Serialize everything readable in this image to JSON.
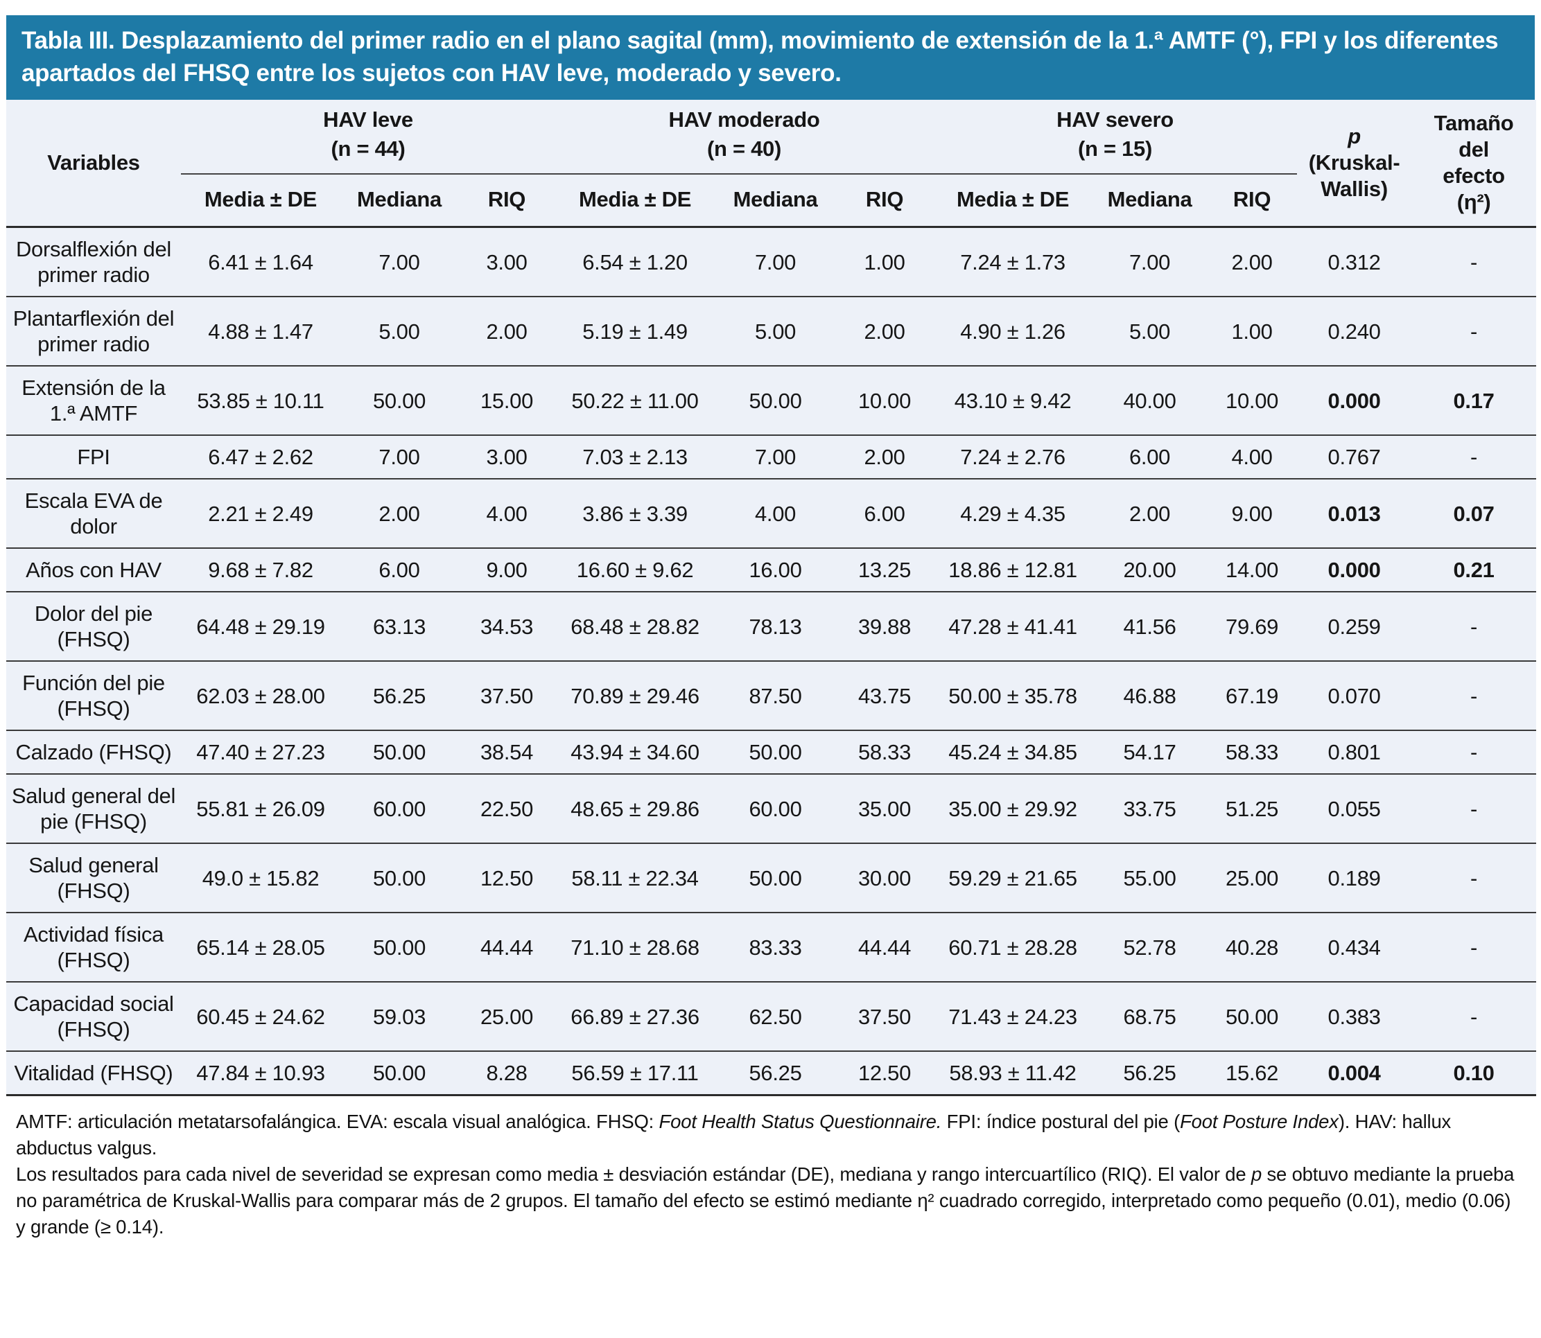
{
  "title": "Tabla III. Desplazamiento del primer radio en el plano sagital (mm), movimiento de extensión de la 1.ª AMTF (°), FPI y los diferentes apartados del FHSQ entre los sujetos con HAV leve, moderado y severo.",
  "colors": {
    "title_bar": "#1e7aa6",
    "title_text": "#ffffff",
    "table_background": "#edf1f8",
    "rule_line": "#3a3a3a"
  },
  "table": {
    "variables_header": "Variables",
    "groups": [
      {
        "name": "HAV leve",
        "n": "(n = 44)"
      },
      {
        "name": "HAV moderado",
        "n": "(n = 40)"
      },
      {
        "name": "HAV severo",
        "n": "(n = 15)"
      }
    ],
    "subheaders": [
      "Media ± DE",
      "Mediana",
      "RIQ"
    ],
    "p_header": {
      "line1": "p",
      "line2": "(Kruskal-",
      "line3": "Wallis)"
    },
    "effect_header": {
      "line1": "Tamaño",
      "line2": "del",
      "line3": "efecto",
      "line4": "(η²)"
    },
    "rows": [
      {
        "variable": "Dorsalflexión del primer radio",
        "cells": [
          "6.41 ± 1.64",
          "7.00",
          "3.00",
          "6.54 ± 1.20",
          "7.00",
          "1.00",
          "7.24 ± 1.73",
          "7.00",
          "2.00"
        ],
        "p": "0.312",
        "effect": "-",
        "bold": false
      },
      {
        "variable": "Plantarflexión del primer radio",
        "cells": [
          "4.88 ± 1.47",
          "5.00",
          "2.00",
          "5.19 ± 1.49",
          "5.00",
          "2.00",
          "4.90 ± 1.26",
          "5.00",
          "1.00"
        ],
        "p": "0.240",
        "effect": "-",
        "bold": false
      },
      {
        "variable": "Extensión de la 1.ª AMTF",
        "cells": [
          "53.85 ± 10.11",
          "50.00",
          "15.00",
          "50.22 ± 11.00",
          "50.00",
          "10.00",
          "43.10 ± 9.42",
          "40.00",
          "10.00"
        ],
        "p": "0.000",
        "effect": "0.17",
        "bold": true
      },
      {
        "variable": "FPI",
        "cells": [
          "6.47 ± 2.62",
          "7.00",
          "3.00",
          "7.03 ± 2.13",
          "7.00",
          "2.00",
          "7.24 ± 2.76",
          "6.00",
          "4.00"
        ],
        "p": "0.767",
        "effect": "-",
        "bold": false
      },
      {
        "variable": "Escala EVA de dolor",
        "cells": [
          "2.21 ± 2.49",
          "2.00",
          "4.00",
          "3.86 ± 3.39",
          "4.00",
          "6.00",
          "4.29 ± 4.35",
          "2.00",
          "9.00"
        ],
        "p": "0.013",
        "effect": "0.07",
        "bold": true
      },
      {
        "variable": "Años con HAV",
        "cells": [
          "9.68 ± 7.82",
          "6.00",
          "9.00",
          "16.60 ± 9.62",
          "16.00",
          "13.25",
          "18.86 ± 12.81",
          "20.00",
          "14.00"
        ],
        "p": "0.000",
        "effect": "0.21",
        "bold": true
      },
      {
        "variable": "Dolor del pie (FHSQ)",
        "cells": [
          "64.48 ± 29.19",
          "63.13",
          "34.53",
          "68.48 ± 28.82",
          "78.13",
          "39.88",
          "47.28 ± 41.41",
          "41.56",
          "79.69"
        ],
        "p": "0.259",
        "effect": "-",
        "bold": false
      },
      {
        "variable": "Función del pie (FHSQ)",
        "cells": [
          "62.03 ± 28.00",
          "56.25",
          "37.50",
          "70.89 ± 29.46",
          "87.50",
          "43.75",
          "50.00 ± 35.78",
          "46.88",
          "67.19"
        ],
        "p": "0.070",
        "effect": "-",
        "bold": false
      },
      {
        "variable": "Calzado (FHSQ)",
        "cells": [
          "47.40 ± 27.23",
          "50.00",
          "38.54",
          "43.94 ± 34.60",
          "50.00",
          "58.33",
          "45.24 ± 34.85",
          "54.17",
          "58.33"
        ],
        "p": "0.801",
        "effect": "-",
        "bold": false
      },
      {
        "variable": "Salud general del pie (FHSQ)",
        "cells": [
          "55.81 ± 26.09",
          "60.00",
          "22.50",
          "48.65 ± 29.86",
          "60.00",
          "35.00",
          "35.00 ± 29.92",
          "33.75",
          "51.25"
        ],
        "p": "0.055",
        "effect": "-",
        "bold": false
      },
      {
        "variable": "Salud general (FHSQ)",
        "cells": [
          "49.0 ± 15.82",
          "50.00",
          "12.50",
          "58.11 ± 22.34",
          "50.00",
          "30.00",
          "59.29 ± 21.65",
          "55.00",
          "25.00"
        ],
        "p": "0.189",
        "effect": "-",
        "bold": false
      },
      {
        "variable": "Actividad física (FHSQ)",
        "cells": [
          "65.14 ± 28.05",
          "50.00",
          "44.44",
          "71.10 ± 28.68",
          "83.33",
          "44.44",
          "60.71 ± 28.28",
          "52.78",
          "40.28"
        ],
        "p": "0.434",
        "effect": "-",
        "bold": false
      },
      {
        "variable": "Capacidad social (FHSQ)",
        "cells": [
          "60.45 ± 24.62",
          "59.03",
          "25.00",
          "66.89 ± 27.36",
          "62.50",
          "37.50",
          "71.43 ± 24.23",
          "68.75",
          "50.00"
        ],
        "p": "0.383",
        "effect": "-",
        "bold": false
      },
      {
        "variable": "Vitalidad (FHSQ)",
        "cells": [
          "47.84 ± 10.93",
          "50.00",
          "8.28",
          "56.59 ± 17.11",
          "56.25",
          "12.50",
          "58.93 ± 11.42",
          "56.25",
          "15.62"
        ],
        "p": "0.004",
        "effect": "0.10",
        "bold": true
      }
    ]
  },
  "footnotes": [
    [
      {
        "text": "AMTF: articulación metatarsofalángica. EVA: escala visual analógica. FHSQ: ",
        "italic": false
      },
      {
        "text": "Foot Health Status Questionnaire.",
        "italic": true
      },
      {
        "text": " FPI: índice postural del pie (",
        "italic": false
      },
      {
        "text": "Foot Posture Index",
        "italic": true
      },
      {
        "text": "). HAV: hallux abductus valgus.",
        "italic": false
      }
    ],
    [
      {
        "text": "Los resultados para cada nivel de severidad se expresan como media ± desviación estándar (DE), mediana y rango intercuartílico (RIQ). El valor de ",
        "italic": false
      },
      {
        "text": "p",
        "italic": true
      },
      {
        "text": " se obtuvo mediante la prueba no paramétrica de Kruskal-Wallis para comparar más de 2 grupos. El tamaño del efecto se estimó mediante η² cuadrado corregido, interpretado como pequeño (0.01), medio (0.06) y grande (≥ 0.14).",
        "italic": false
      }
    ]
  ]
}
